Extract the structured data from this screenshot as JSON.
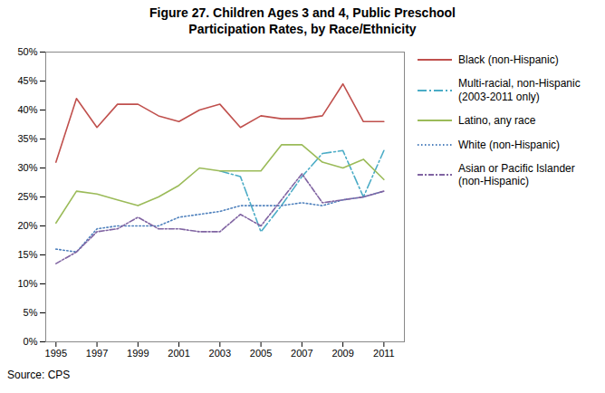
{
  "chart_data": {
    "type": "line",
    "title": "Figure 27. Children Ages 3 and 4, Public Preschool\nParticipation Rates, by Race/Ethnicity",
    "caption": "Source: CPS",
    "x": [
      1995,
      1996,
      1997,
      1998,
      1999,
      2000,
      2001,
      2002,
      2003,
      2004,
      2005,
      2006,
      2007,
      2008,
      2009,
      2010,
      2011
    ],
    "series": [
      {
        "name": "Black (non-Hispanic)",
        "color": "#C0504D",
        "line_style": "solid",
        "values": [
          0.31,
          0.42,
          0.37,
          0.41,
          0.41,
          0.39,
          0.38,
          0.4,
          0.41,
          0.37,
          0.39,
          0.385,
          0.385,
          0.39,
          0.445,
          0.38,
          0.38
        ]
      },
      {
        "name": "Multi-racial, non-Hispanic\n(2003-2011 only)",
        "color": "#4BACC6",
        "line_style": "dashdot",
        "values": [
          null,
          null,
          null,
          null,
          null,
          null,
          null,
          null,
          0.295,
          0.285,
          0.19,
          0.235,
          0.285,
          0.325,
          0.33,
          0.25,
          0.33
        ]
      },
      {
        "name": "Latino, any race",
        "color": "#9BBB59",
        "line_style": "solid",
        "values": [
          0.205,
          0.26,
          0.255,
          0.245,
          0.235,
          0.25,
          0.27,
          0.3,
          0.295,
          0.295,
          0.295,
          0.34,
          0.34,
          0.31,
          0.3,
          0.315,
          0.28
        ]
      },
      {
        "name": "White (non-Hispanic)",
        "color": "#4F81BD",
        "line_style": "dotted",
        "values": [
          0.16,
          0.155,
          0.195,
          0.2,
          0.2,
          0.2,
          0.215,
          0.22,
          0.225,
          0.235,
          0.235,
          0.235,
          0.24,
          0.235,
          0.245,
          0.25,
          0.26
        ]
      },
      {
        "name": "Asian or Pacific Islander\n(non-Hispanic)",
        "color": "#8064A2",
        "line_style": "dashed",
        "values": [
          0.135,
          0.155,
          0.19,
          0.195,
          0.215,
          0.195,
          0.195,
          0.19,
          0.19,
          0.22,
          0.2,
          0.245,
          0.29,
          0.24,
          0.245,
          0.25,
          0.26
        ]
      }
    ],
    "xlim": [
      1994.5,
      2012.0
    ],
    "xticks": [
      1995,
      1997,
      1999,
      2001,
      2003,
      2005,
      2007,
      2009,
      2011
    ],
    "ylim": [
      0.0,
      0.5
    ],
    "yticks": [
      {
        "value": 0.0,
        "label": "0%"
      },
      {
        "value": 0.05,
        "label": "5%"
      },
      {
        "value": 0.1,
        "label": "10%"
      },
      {
        "value": 0.15,
        "label": "15%"
      },
      {
        "value": 0.2,
        "label": "20%"
      },
      {
        "value": 0.25,
        "label": "25%"
      },
      {
        "value": 0.3,
        "label": "30%"
      },
      {
        "value": 0.35,
        "label": "35%"
      },
      {
        "value": 0.4,
        "label": "40%"
      },
      {
        "value": 0.45,
        "label": "45%"
      },
      {
        "value": 0.5,
        "label": "50%"
      }
    ],
    "grid": false,
    "legend": "right"
  }
}
